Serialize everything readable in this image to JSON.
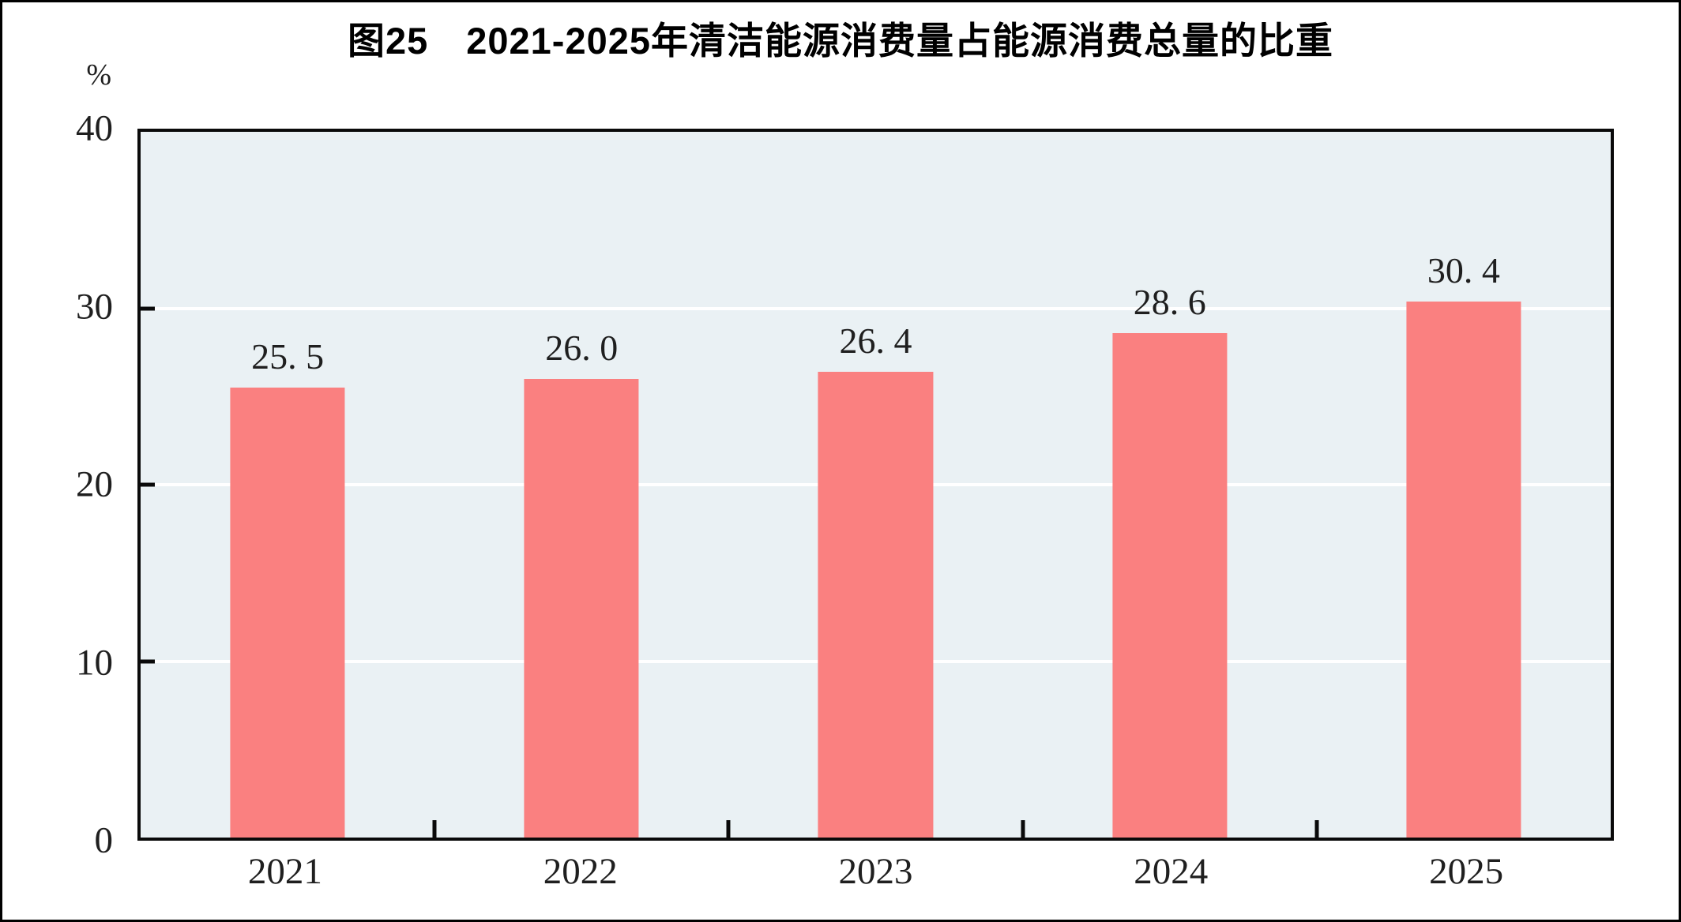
{
  "page": {
    "background_color": "#ffffff",
    "frame_color": "#000000"
  },
  "chart": {
    "title": "图25　2021-2025年清洁能源消费量占能源消费总量的比重",
    "unit_label": "%",
    "colors": {
      "bar": "#fa8080",
      "plot_background": "#eaf1f4",
      "axis": "#0a0a0a",
      "gridline": "#ffffff",
      "text": "#1f1f1f"
    }
  },
  "chart_data": {
    "type": "bar",
    "title": "图25　2021-2025年清洁能源消费量占能源消费总量的比重",
    "categories": [
      "2021",
      "2022",
      "2023",
      "2024",
      "2025"
    ],
    "values": [
      25.5,
      26.0,
      26.4,
      28.6,
      30.4
    ],
    "value_labels": [
      "25. 5",
      "26. 0",
      "26. 4",
      "28. 6",
      "30. 4"
    ],
    "xlabel": "",
    "ylabel": "%",
    "ylim": [
      0,
      40
    ],
    "yticks": [
      40,
      30,
      20,
      10,
      0
    ],
    "gridline_values": [
      30,
      20,
      10
    ],
    "grid": "horizontal",
    "legend_position": "none"
  }
}
